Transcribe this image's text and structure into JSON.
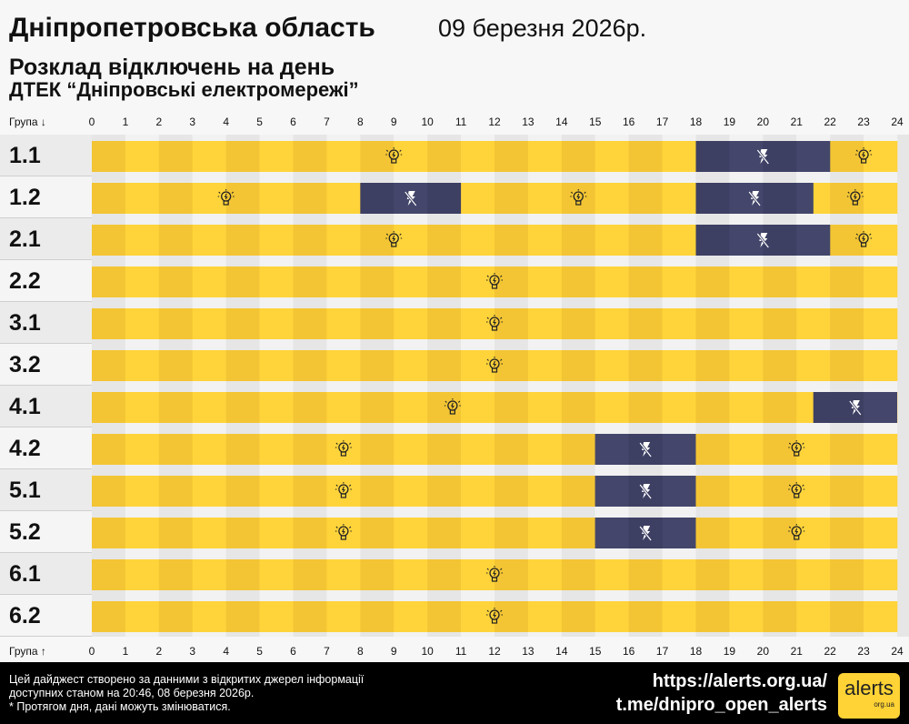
{
  "header": {
    "title": "Дніпропетровська область",
    "date": "09 березня 2026р.",
    "subtitle": "Розклад відключень на день",
    "provider": "ДТЕК “Дніпровські електромережі”"
  },
  "axis": {
    "top_label": "Група ↓",
    "bottom_label": "Група ↑"
  },
  "colors": {
    "on_even": "#f3c534",
    "on_odd": "#ffd43a",
    "off": "#3d3f63",
    "label_bg_a": "#ebebeb",
    "label_bg_b": "#f5f5f5"
  },
  "chart_data": {
    "type": "timeline",
    "x_ticks": [
      0,
      1,
      2,
      3,
      4,
      5,
      6,
      7,
      8,
      9,
      10,
      11,
      12,
      13,
      14,
      15,
      16,
      17,
      18,
      19,
      20,
      21,
      22,
      23,
      24
    ],
    "xlim": [
      0,
      24
    ],
    "groups": [
      {
        "name": "1.1",
        "outages": [
          [
            18,
            22
          ]
        ]
      },
      {
        "name": "1.2",
        "outages": [
          [
            8,
            11
          ],
          [
            18,
            21.5
          ]
        ]
      },
      {
        "name": "2.1",
        "outages": [
          [
            18,
            22
          ]
        ]
      },
      {
        "name": "2.2",
        "outages": []
      },
      {
        "name": "3.1",
        "outages": []
      },
      {
        "name": "3.2",
        "outages": []
      },
      {
        "name": "4.1",
        "outages": [
          [
            21.5,
            24
          ]
        ]
      },
      {
        "name": "4.2",
        "outages": [
          [
            15,
            18
          ]
        ]
      },
      {
        "name": "5.1",
        "outages": [
          [
            15,
            18
          ]
        ]
      },
      {
        "name": "5.2",
        "outages": [
          [
            15,
            18
          ]
        ]
      },
      {
        "name": "6.1",
        "outages": []
      },
      {
        "name": "6.2",
        "outages": []
      }
    ],
    "icons": {
      "on": "lightbulb-icon",
      "off": "power-off-icon"
    }
  },
  "footer": {
    "line1": "Цей дайджест створено за данними з відкритих джерел інформації",
    "line2": "доступних станом на 20:46, 08 березня 2026р.",
    "line3": "* Протягом дня, дані можуть змінюватися.",
    "url": "https://alerts.org.ua/",
    "telegram": "t.me/dnipro_open_alerts",
    "logo_text": "alerts",
    "logo_sub": "org.ua"
  }
}
